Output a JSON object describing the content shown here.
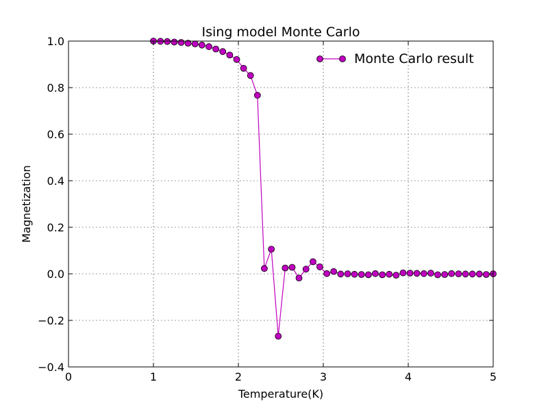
{
  "chart_data": {
    "type": "line",
    "title": "Ising model Monte Carlo",
    "xlabel": "Temperature(K)",
    "ylabel": "Magnetization",
    "xlim": [
      0,
      5
    ],
    "ylim": [
      -0.4,
      1.0
    ],
    "x_ticks": [
      0,
      1,
      2,
      3,
      4,
      5
    ],
    "x_tick_labels": [
      "0",
      "1",
      "2",
      "3",
      "4",
      "5"
    ],
    "y_ticks": [
      -0.4,
      -0.2,
      0.0,
      0.2,
      0.4,
      0.6,
      0.8,
      1.0
    ],
    "y_tick_labels": [
      "−0.4",
      "−0.2",
      "0.0",
      "0.2",
      "0.4",
      "0.6",
      "0.8",
      "1.0"
    ],
    "grid": true,
    "legend_position": "top-right",
    "series": [
      {
        "name": "Monte Carlo result",
        "color": "#bf00bf",
        "marker": "circle",
        "x": [
          1.0,
          1.082,
          1.163,
          1.245,
          1.327,
          1.408,
          1.49,
          1.571,
          1.653,
          1.735,
          1.816,
          1.898,
          1.98,
          2.061,
          2.143,
          2.224,
          2.306,
          2.388,
          2.469,
          2.551,
          2.633,
          2.714,
          2.796,
          2.878,
          2.959,
          3.041,
          3.122,
          3.204,
          3.286,
          3.367,
          3.449,
          3.531,
          3.612,
          3.694,
          3.776,
          3.857,
          3.939,
          4.02,
          4.102,
          4.184,
          4.265,
          4.347,
          4.429,
          4.51,
          4.592,
          4.673,
          4.755,
          4.837,
          4.918,
          5.0
        ],
        "y": [
          1.0,
          0.999,
          0.998,
          0.996,
          0.994,
          0.991,
          0.988,
          0.983,
          0.976,
          0.966,
          0.955,
          0.94,
          0.921,
          0.883,
          0.852,
          0.767,
          0.023,
          0.106,
          -0.268,
          0.025,
          0.028,
          -0.018,
          0.02,
          0.052,
          0.03,
          0.001,
          0.01,
          -0.001,
          0.0,
          -0.002,
          -0.003,
          -0.004,
          0.001,
          -0.004,
          -0.002,
          -0.006,
          0.004,
          0.003,
          0.002,
          0.001,
          0.003,
          -0.004,
          -0.003,
          0.001,
          0.0,
          -0.001,
          -0.001,
          -0.001,
          -0.003,
          0.0
        ]
      }
    ]
  }
}
